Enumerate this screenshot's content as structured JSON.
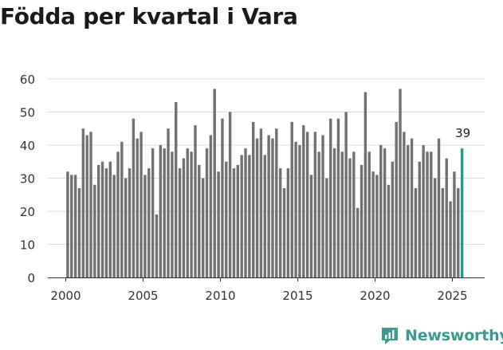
{
  "title": "Födda per kvartal i Vara",
  "brand": {
    "name": "Newsworthy",
    "color": "#3a9b8f"
  },
  "chart_data": {
    "type": "bar",
    "title": "Födda per kvartal i Vara",
    "xlabel": "",
    "ylabel": "",
    "ylim": [
      0,
      60
    ],
    "yticks": [
      0,
      10,
      20,
      30,
      40,
      50,
      60
    ],
    "xticks": [
      "2000",
      "2005",
      "2010",
      "2015",
      "2020",
      "2025"
    ],
    "start_year": 2000,
    "bar_color": "#727075",
    "highlight_color": "#1a9e8f",
    "highlight_label": "39",
    "values": [
      32,
      31,
      31,
      27,
      45,
      43,
      44,
      28,
      34,
      35,
      33,
      35,
      31,
      38,
      41,
      30,
      33,
      48,
      42,
      44,
      31,
      33,
      39,
      19,
      40,
      39,
      45,
      38,
      53,
      33,
      36,
      39,
      38,
      46,
      34,
      30,
      39,
      43,
      57,
      32,
      48,
      35,
      50,
      33,
      34,
      37,
      39,
      37,
      47,
      42,
      45,
      37,
      43,
      42,
      45,
      33,
      27,
      33,
      47,
      41,
      40,
      46,
      44,
      31,
      44,
      38,
      43,
      30,
      48,
      39,
      48,
      38,
      50,
      36,
      38,
      21,
      34,
      56,
      38,
      32,
      31,
      40,
      39,
      28,
      35,
      47,
      57,
      44,
      40,
      42,
      27,
      35,
      40,
      38,
      38,
      30,
      42,
      27,
      36,
      23,
      32,
      27,
      39
    ]
  }
}
